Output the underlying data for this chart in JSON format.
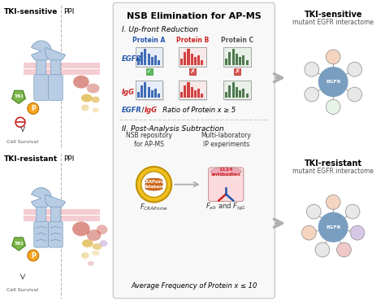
{
  "bg_color": "#ffffff",
  "title_nsb": "NSB Elimination for AP-MS",
  "section1_title": "I. Up-front Reduction",
  "section2_title": "II. Post-Analysis Subtraction",
  "protein_labels": [
    "Protein A",
    "Protein B",
    "Protein C"
  ],
  "protein_label_colors": [
    "#2255aa",
    "#cc2222",
    "#555555"
  ],
  "egfr_label_color": "#2255aa",
  "igg_label_color": "#cc2222",
  "tki_sens_title": "TKI-sensitive",
  "tki_sens_sub": "mutant EGFR interactome",
  "tki_res_title": "TKI-resistant",
  "tki_res_sub": "mutant EGFR interactome",
  "left_top_title": "TKI-sensitive",
  "left_top_sub": "PPI",
  "left_bot_title": "TKI-resistant",
  "left_bot_sub": "PPI",
  "cell_survival": "Cell Survival",
  "tki_text": "TKI",
  "membrane_color": "#f0b8c0",
  "receptor_color": "#b8cce4",
  "receptor_dark": "#7a9ec0",
  "egfr_node_color": "#7a9ec0",
  "node_colors_top": [
    "#f5d5c0",
    "#e8e8e8",
    "#e8e8e8",
    "#e8f4e8",
    "#e8e8e8",
    "#e8e8e8"
  ],
  "node_colors_bot": [
    "#f5d5c0",
    "#e8e8e8",
    "#d8c8e8",
    "#f0c8c8",
    "#e8e8e8",
    "#f5d5c0",
    "#e8e8e8"
  ],
  "tki_color": "#7ab648",
  "p_color": "#f5a623",
  "arrow_color": "#b0b0b0",
  "box_bg": "#f8f8f8",
  "box_edge": "#cccccc",
  "check_color": "#5cb85c",
  "x_color": "#d9534f",
  "crapome_gold": "#f0c020",
  "crapome_inner": "#d4701e",
  "ab_bg": "#fadadd",
  "ab_top": "#f0a8b8"
}
